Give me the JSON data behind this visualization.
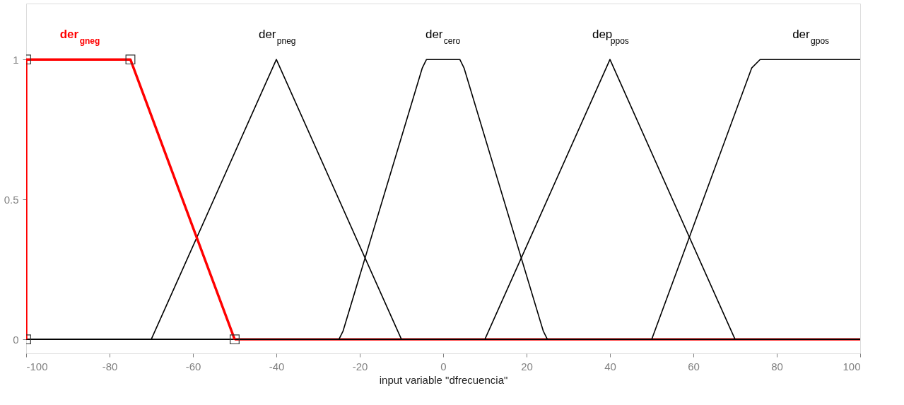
{
  "chart_data": {
    "type": "line",
    "xlabel": "input variable \"dfrecuencia\"",
    "xlim": [
      -100,
      100
    ],
    "xticks": [
      -100,
      -80,
      -60,
      -40,
      -20,
      0,
      20,
      40,
      60,
      80,
      100
    ],
    "ylim": [
      -0.05,
      1.2
    ],
    "yticks": [
      0,
      0.5,
      1
    ],
    "grid": false,
    "legend": false,
    "series": [
      {
        "color": "#ff0000",
        "x": [
          -50,
          100
        ],
        "values": [
          0,
          0
        ]
      },
      {
        "name": "der$_{pneg}$",
        "color": "#000000",
        "x": [
          -100,
          -70,
          -40,
          -10,
          100
        ],
        "values": [
          0,
          0,
          1,
          0,
          0
        ],
        "marker": "none"
      },
      {
        "name": "der$_{cero}$",
        "color": "#000000",
        "x": [
          -100,
          -25,
          -24,
          -5,
          -4,
          4,
          5,
          24,
          25,
          100
        ],
        "values": [
          0,
          0,
          0.03,
          0.97,
          1,
          1,
          0.97,
          0.03,
          0,
          0
        ],
        "marker": "none"
      },
      {
        "name": "dep$_{ppos}$",
        "color": "#000000",
        "x": [
          -100,
          10,
          40,
          70,
          100
        ],
        "values": [
          0,
          0,
          1,
          0,
          0
        ],
        "marker": "none"
      },
      {
        "name": "der$_{gpos}$",
        "color": "#000000",
        "x": [
          -100,
          50,
          74,
          76,
          100
        ],
        "values": [
          0,
          0,
          0.97,
          1,
          1
        ],
        "marker": "none"
      },
      {
        "name": "der$_{gneg}$",
        "color": "#ff0000",
        "x": [
          -100,
          -100,
          -75,
          -50
        ],
        "values": [
          0,
          1,
          1,
          0
        ],
        "marker": "square"
      }
    ]
  }
}
